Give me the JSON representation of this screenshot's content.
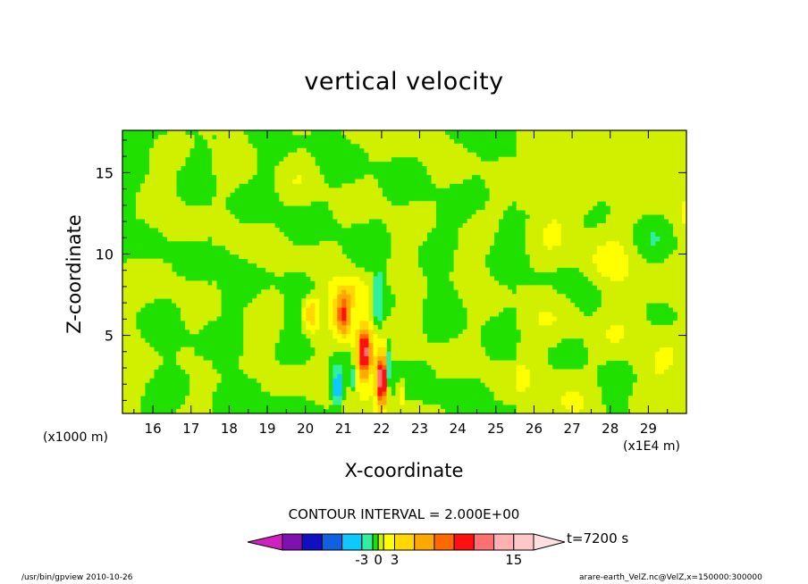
{
  "header": {
    "title": "vertical velocity"
  },
  "chart_data": {
    "type": "heatmap",
    "title": "vertical velocity",
    "xlabel": "X-coordinate",
    "ylabel": "Z-coordinate",
    "x_unit_note": "(x1E4 m)",
    "y_unit_note": "(x1000 m)",
    "xlim": [
      15.2,
      30.0
    ],
    "ylim": [
      0.2,
      17.6
    ],
    "x_ticks": [
      16,
      17,
      18,
      19,
      20,
      21,
      22,
      23,
      24,
      25,
      26,
      27,
      28,
      29
    ],
    "y_ticks": [
      5,
      10,
      15
    ],
    "contour_interval_label": "CONTOUR INTERVAL = 2.000E+00",
    "colorbar": {
      "levels": [
        -11,
        -9,
        -7,
        -5,
        -3,
        -1,
        0,
        1,
        3,
        5,
        7,
        9,
        11,
        13,
        15,
        17
      ],
      "colors": [
        "#d020c0",
        "#8010b0",
        "#1010c0",
        "#1060e0",
        "#10c8ff",
        "#30f0a0",
        "#20e000",
        "#d0f000",
        "#ffff00",
        "#ffd800",
        "#ffa800",
        "#ff6800",
        "#ff1010",
        "#ff7070",
        "#ffb0b0",
        "#ffc8c8",
        "#ffe0e0"
      ],
      "tick_labels": [
        {
          "value": -3,
          "text": "-3"
        },
        {
          "value": 0,
          "text": "0"
        },
        {
          "value": 3,
          "text": "3"
        },
        {
          "value": 15,
          "text": "15"
        }
      ]
    },
    "features": [
      {
        "kind": "updraft",
        "x": 21.55,
        "z": 4.0,
        "peak": 12
      },
      {
        "kind": "updraft",
        "x": 21.0,
        "z": 6.2,
        "peak": 9
      },
      {
        "kind": "updraft",
        "x": 22.0,
        "z": 2.3,
        "peak": 14
      },
      {
        "kind": "updraft",
        "x": 20.15,
        "z": 6.3,
        "peak": 5
      },
      {
        "kind": "downdraft",
        "x": 20.85,
        "z": 1.8,
        "peak": -5
      },
      {
        "kind": "downdraft",
        "x": 21.9,
        "z": 7.5,
        "peak": -2
      }
    ],
    "time_label": "t=7200 s",
    "footer_left": "/usr/bin/gpview  2010-10-26",
    "footer_right": "arare-earth_VelZ.nc@VelZ,x=150000:300000"
  }
}
